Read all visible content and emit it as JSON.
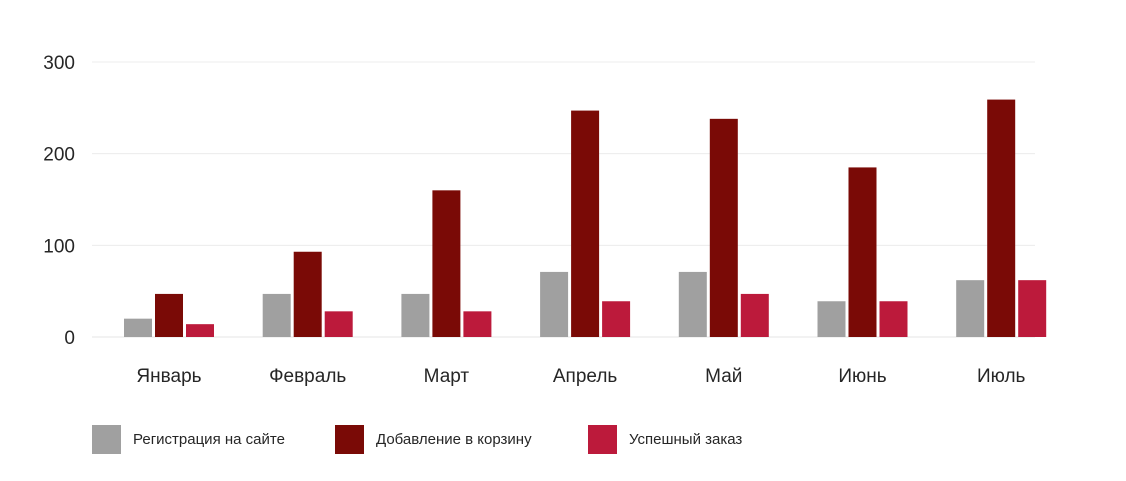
{
  "chart_data": {
    "type": "bar",
    "title": "",
    "xlabel": "",
    "ylabel": "",
    "ylim": [
      0,
      300
    ],
    "yticks": [
      0,
      100,
      200,
      300
    ],
    "grid": true,
    "legend_position": "bottom-left",
    "categories": [
      "Январь",
      "Февраль",
      "Март",
      "Апрель",
      "Май",
      "Июнь",
      "Июль"
    ],
    "series": [
      {
        "name": "Регистрация на сайте",
        "color": "#a0a0a0",
        "values": [
          20,
          47,
          47,
          71,
          71,
          39,
          62
        ]
      },
      {
        "name": "Добавление в корзину",
        "color": "#7a0a06",
        "values": [
          47,
          93,
          160,
          247,
          238,
          185,
          259
        ]
      },
      {
        "name": "Успешный заказ",
        "color": "#bc1a3b",
        "values": [
          14,
          28,
          28,
          39,
          47,
          39,
          62
        ]
      }
    ]
  }
}
